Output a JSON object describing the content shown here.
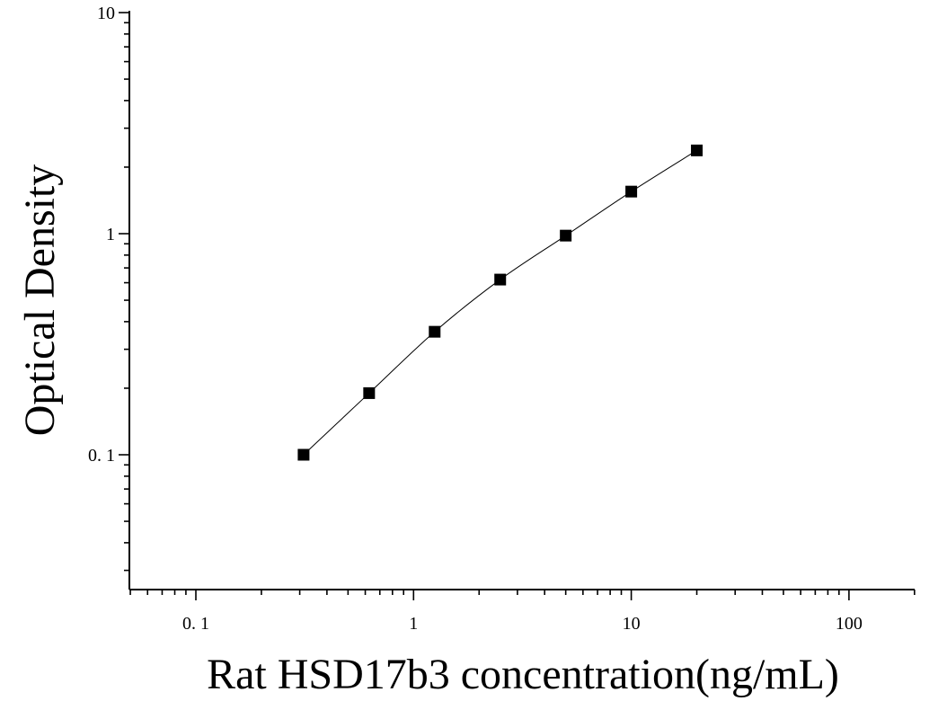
{
  "chart_data": {
    "type": "scatter",
    "xlabel": "Rat HSD17b3 concentration(ng/mL)",
    "ylabel": "Optical Density",
    "x_scale": "log",
    "y_scale": "log",
    "xlim": [
      0.05,
      200
    ],
    "ylim": [
      0.025,
      10
    ],
    "x_ticks": [
      0.1,
      1,
      10,
      100
    ],
    "x_tick_labels": [
      "0. 1",
      "1",
      "10",
      "100"
    ],
    "y_ticks": [
      0.1,
      1,
      10
    ],
    "y_tick_labels": [
      "0. 1",
      "1",
      "10"
    ],
    "grid": false,
    "series": [
      {
        "x": [
          0.3125,
          0.625,
          1.25,
          2.5,
          5,
          10,
          20
        ],
        "y": [
          0.1,
          0.19,
          0.36,
          0.62,
          0.98,
          1.55,
          2.38
        ],
        "marker": "square",
        "color": "#000000",
        "fit_line": true
      }
    ]
  }
}
